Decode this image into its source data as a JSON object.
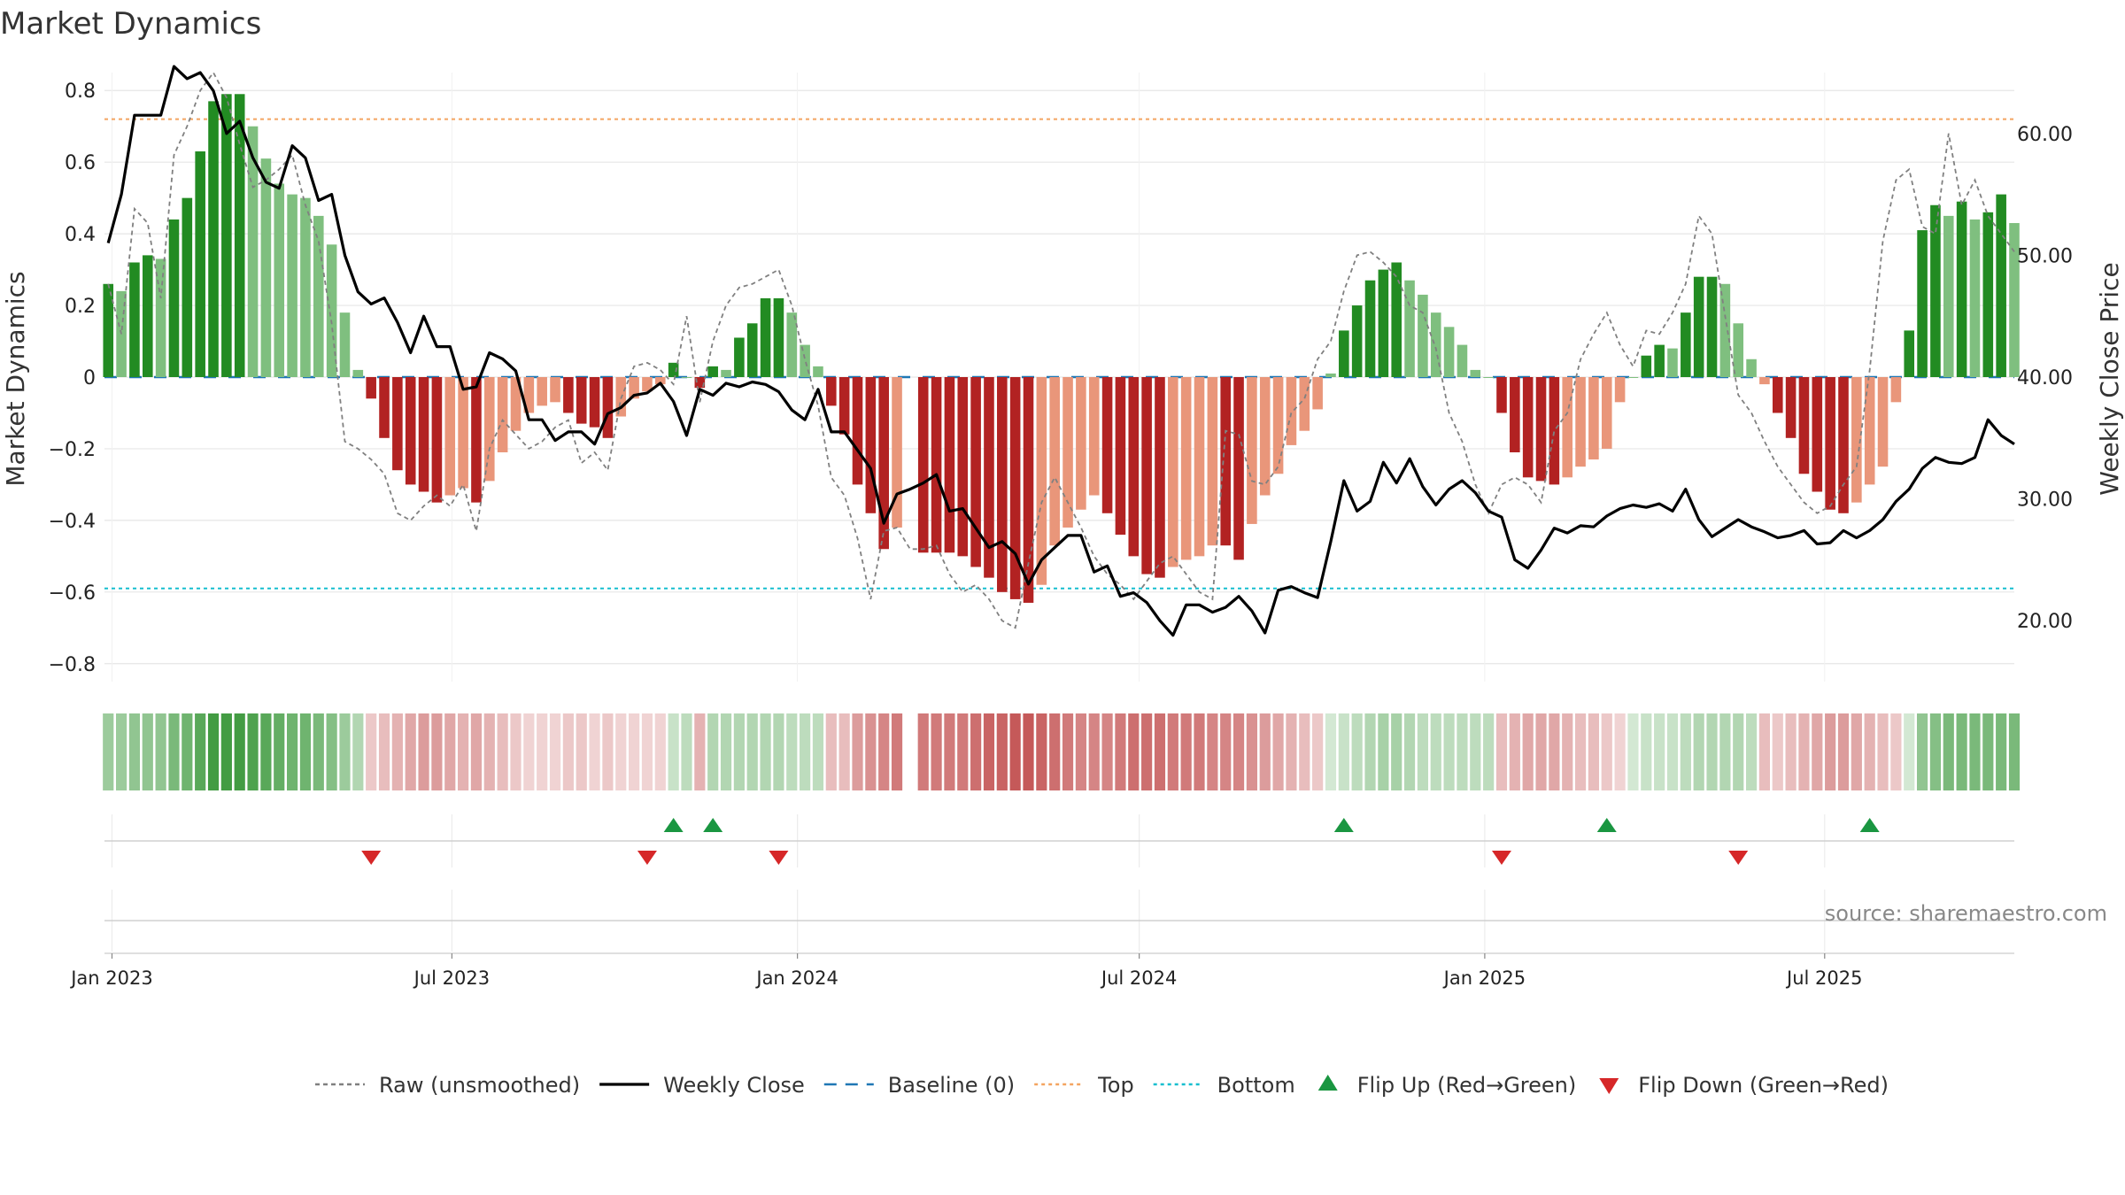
{
  "chart_data": {
    "type": "bar",
    "title": "Market Dynamics",
    "ylabel_left": "Market Dynamics",
    "ylabel_right": "Weekly Close Price",
    "source": "source: sharemaestro.com",
    "ylim_left": [
      -0.85,
      0.85
    ],
    "ylim_right": [
      15,
      65
    ],
    "y_ticks_left": [
      {
        "value": 0.8,
        "label": "0.8"
      },
      {
        "value": 0.6,
        "label": "0.6"
      },
      {
        "value": 0.4,
        "label": "0.4"
      },
      {
        "value": 0.2,
        "label": "0.2"
      },
      {
        "value": 0.0,
        "label": "0"
      },
      {
        "value": -0.2,
        "label": "−0.2"
      },
      {
        "value": -0.4,
        "label": "−0.4"
      },
      {
        "value": -0.6,
        "label": "−0.6"
      },
      {
        "value": -0.8,
        "label": "−0.8"
      }
    ],
    "y_ticks_right": [
      {
        "value": 60,
        "label": "60.00"
      },
      {
        "value": 50,
        "label": "50.00"
      },
      {
        "value": 40,
        "label": "40.00"
      },
      {
        "value": 30,
        "label": "30.00"
      },
      {
        "value": 20,
        "label": "20.00"
      }
    ],
    "x_range": [
      "2022-12-28",
      "2025-10-10"
    ],
    "x_ticks": [
      {
        "date": "2023-01-01",
        "label": "Jan 2023"
      },
      {
        "date": "2023-07-01",
        "label": "Jul 2023"
      },
      {
        "date": "2024-01-01",
        "label": "Jan 2024"
      },
      {
        "date": "2024-07-01",
        "label": "Jul 2024"
      },
      {
        "date": "2025-01-01",
        "label": "Jan 2025"
      },
      {
        "date": "2025-07-01",
        "label": "Jul 2025"
      }
    ],
    "start_date": "2022-12-30",
    "week_step_days": 7,
    "gap_weeks": [
      61
    ],
    "top_level": 0.72,
    "bottom_level": -0.59,
    "baseline": 0,
    "grid": true,
    "legend_position": "bottom",
    "dynamics": [
      0.26,
      0.24,
      0.32,
      0.34,
      0.33,
      0.44,
      0.5,
      0.63,
      0.77,
      0.79,
      0.79,
      0.7,
      0.61,
      0.54,
      0.51,
      0.5,
      0.45,
      0.37,
      0.18,
      0.02,
      -0.06,
      -0.17,
      -0.26,
      -0.3,
      -0.32,
      -0.35,
      -0.33,
      -0.31,
      -0.35,
      -0.29,
      -0.21,
      -0.15,
      -0.1,
      -0.08,
      -0.07,
      -0.1,
      -0.13,
      -0.14,
      -0.17,
      -0.11,
      -0.06,
      -0.04,
      -0.02,
      0.04,
      0.0,
      -0.03,
      0.03,
      0.02,
      0.11,
      0.15,
      0.22,
      0.22,
      0.18,
      0.09,
      0.03,
      -0.08,
      -0.16,
      -0.3,
      -0.38,
      -0.48,
      -0.42,
      null,
      -0.49,
      -0.49,
      -0.49,
      -0.5,
      -0.53,
      -0.56,
      -0.6,
      -0.62,
      -0.63,
      -0.58,
      -0.47,
      -0.42,
      -0.37,
      -0.33,
      -0.38,
      -0.44,
      -0.5,
      -0.55,
      -0.56,
      -0.53,
      -0.51,
      -0.5,
      -0.47,
      -0.47,
      -0.51,
      -0.41,
      -0.33,
      -0.27,
      -0.19,
      -0.15,
      -0.09,
      0.01,
      0.13,
      0.2,
      0.27,
      0.3,
      0.32,
      0.27,
      0.23,
      0.18,
      0.14,
      0.09,
      0.02,
      0.0,
      -0.1,
      -0.21,
      -0.28,
      -0.29,
      -0.3,
      -0.28,
      -0.25,
      -0.23,
      -0.2,
      -0.07,
      0.0,
      0.06,
      0.09,
      0.08,
      0.18,
      0.28,
      0.28,
      0.26,
      0.15,
      0.05,
      -0.02,
      -0.1,
      -0.17,
      -0.27,
      -0.32,
      -0.37,
      -0.38,
      -0.35,
      -0.3,
      -0.25,
      -0.07,
      0.13,
      0.41,
      0.48,
      0.45,
      0.49,
      0.44,
      0.46,
      0.51,
      0.43
    ],
    "raw": [
      0.26,
      0.12,
      0.47,
      0.43,
      0.22,
      0.62,
      0.7,
      0.8,
      0.85,
      0.78,
      0.65,
      0.53,
      0.55,
      0.58,
      0.62,
      0.48,
      0.38,
      0.15,
      -0.18,
      -0.2,
      -0.23,
      -0.27,
      -0.38,
      -0.4,
      -0.36,
      -0.33,
      -0.36,
      -0.3,
      -0.43,
      -0.2,
      -0.12,
      -0.16,
      -0.2,
      -0.18,
      -0.14,
      -0.12,
      -0.24,
      -0.21,
      -0.26,
      -0.06,
      0.03,
      0.04,
      0.02,
      -0.02,
      0.17,
      -0.07,
      0.1,
      0.2,
      0.25,
      0.26,
      0.28,
      0.3,
      0.2,
      0.05,
      -0.08,
      -0.28,
      -0.33,
      -0.45,
      -0.62,
      -0.43,
      -0.42,
      -0.48,
      -0.48,
      -0.47,
      -0.55,
      -0.6,
      -0.58,
      -0.62,
      -0.68,
      -0.7,
      -0.52,
      -0.35,
      -0.28,
      -0.35,
      -0.42,
      -0.5,
      -0.55,
      -0.58,
      -0.62,
      -0.57,
      -0.52,
      -0.5,
      -0.55,
      -0.6,
      -0.62,
      -0.15,
      -0.16,
      -0.29,
      -0.3,
      -0.25,
      -0.1,
      -0.06,
      0.05,
      0.1,
      0.24,
      0.34,
      0.35,
      0.32,
      0.28,
      0.2,
      0.18,
      0.08,
      -0.1,
      -0.18,
      -0.3,
      -0.38,
      -0.3,
      -0.28,
      -0.3,
      -0.35,
      -0.15,
      -0.1,
      0.05,
      0.12,
      0.18,
      0.09,
      0.03,
      0.13,
      0.12,
      0.18,
      0.26,
      0.45,
      0.4,
      0.17,
      -0.05,
      -0.1,
      -0.18,
      -0.25,
      -0.3,
      -0.35,
      -0.38,
      -0.36,
      -0.3,
      -0.25,
      0.02,
      0.38,
      0.55,
      0.58,
      0.42,
      0.4,
      0.68,
      0.48,
      0.55,
      0.45,
      0.4,
      0.35
    ],
    "close": [
      51,
      55,
      61.5,
      61.5,
      61.5,
      65.5,
      64.5,
      65,
      63.5,
      60,
      61,
      58,
      56,
      55.5,
      59,
      58,
      54.5,
      55,
      50,
      47,
      46,
      46.5,
      44.5,
      42,
      45,
      42.5,
      42.5,
      39,
      39.2,
      42,
      41.5,
      40.5,
      36.5,
      36.5,
      34.8,
      35.5,
      35.5,
      34.5,
      37,
      37.5,
      38.5,
      38.7,
      39.5,
      38,
      35.2,
      39,
      38.5,
      39.5,
      39.2,
      39.6,
      39.4,
      38.8,
      37.3,
      36.5,
      39,
      35.5,
      35.5,
      34,
      32.5,
      28,
      30.4,
      30.8,
      31.3,
      32,
      29,
      29.2,
      27.6,
      26,
      26.5,
      25.5,
      23,
      25,
      26,
      27,
      27,
      24,
      24.5,
      22,
      22.3,
      21.5,
      20,
      18.8,
      21.3,
      21.3,
      20.7,
      21.1,
      22,
      20.8,
      19,
      22.5,
      22.8,
      22.3,
      21.9,
      26.5,
      31.5,
      29,
      29.8,
      33,
      31.3,
      33.3,
      31,
      29.5,
      30.8,
      31.5,
      30.5,
      29,
      28.5,
      25,
      24.3,
      25.8,
      27.6,
      27.2,
      27.8,
      27.7,
      28.6,
      29.2,
      29.5,
      29.3,
      29.6,
      29,
      30.8,
      28.3,
      26.9,
      27.6,
      28.3,
      27.7,
      27.3,
      26.8,
      27,
      27.4,
      26.3,
      26.4,
      27.4,
      26.8,
      27.4,
      28.3,
      29.8,
      30.8,
      32.5,
      33.4,
      33,
      32.9,
      33.4,
      36.5,
      35.2,
      34.5
    ],
    "strip_level": [
      0.45,
      0.45,
      0.5,
      0.5,
      0.5,
      0.6,
      0.65,
      0.75,
      0.85,
      0.85,
      0.85,
      0.8,
      0.75,
      0.7,
      0.65,
      0.65,
      0.6,
      0.55,
      0.45,
      0.35,
      0.25,
      0.3,
      0.35,
      0.4,
      0.45,
      0.45,
      0.4,
      0.35,
      0.4,
      0.35,
      0.3,
      0.25,
      0.2,
      0.2,
      0.2,
      0.25,
      0.25,
      0.2,
      0.25,
      0.2,
      0.2,
      0.2,
      0.2,
      0.25,
      0.3,
      0.35,
      0.35,
      0.35,
      0.35,
      0.35,
      0.35,
      0.35,
      0.3,
      0.3,
      0.3,
      0.3,
      0.3,
      0.45,
      0.5,
      0.55,
      0.6,
      null,
      0.6,
      0.6,
      0.6,
      0.6,
      0.65,
      0.7,
      0.7,
      0.75,
      0.75,
      0.7,
      0.65,
      0.6,
      0.55,
      0.55,
      0.55,
      0.6,
      0.65,
      0.65,
      0.65,
      0.6,
      0.6,
      0.6,
      0.55,
      0.55,
      0.55,
      0.5,
      0.45,
      0.4,
      0.35,
      0.3,
      0.25,
      0.2,
      0.25,
      0.3,
      0.35,
      0.4,
      0.4,
      0.35,
      0.3,
      0.3,
      0.3,
      0.3,
      0.3,
      0.3,
      0.3,
      0.35,
      0.4,
      0.4,
      0.4,
      0.35,
      0.3,
      0.3,
      0.25,
      0.2,
      0.2,
      0.25,
      0.25,
      0.25,
      0.3,
      0.35,
      0.35,
      0.35,
      0.35,
      0.3,
      0.3,
      0.25,
      0.3,
      0.35,
      0.4,
      0.45,
      0.45,
      0.4,
      0.35,
      0.3,
      0.25,
      0.2,
      0.5,
      0.55,
      0.6,
      0.6,
      0.6,
      0.6,
      0.6,
      0.6,
      0.6,
      0.55
    ],
    "flips_up": [
      {
        "week": 43
      },
      {
        "week": 46
      },
      {
        "week": 94
      },
      {
        "week": 114
      },
      {
        "week": 134
      }
    ],
    "flips_down": [
      {
        "week": 20
      },
      {
        "week": 41
      },
      {
        "week": 51
      },
      {
        "week": 106
      },
      {
        "week": 124
      }
    ],
    "colors": {
      "strong_green": "#228b22",
      "light_green": "#7fbf7f",
      "strong_red": "#b22222",
      "light_red": "#e9967a",
      "raw_line": "#808080",
      "close_line": "#000000",
      "baseline": "#1f77b4",
      "top_line": "#f4a460",
      "bottom_line": "#17becf",
      "flip_up": "#1a9641",
      "flip_down": "#d62728",
      "grid": "#e6e6e6"
    },
    "legend": [
      {
        "label": "Raw (unsmoothed)",
        "kind": "dash",
        "color": "#808080"
      },
      {
        "label": "Weekly Close",
        "kind": "solid",
        "color": "#000000"
      },
      {
        "label": "Baseline (0)",
        "kind": "longdash",
        "color": "#1f77b4"
      },
      {
        "label": "Top",
        "kind": "dot",
        "color": "#f4a460"
      },
      {
        "label": "Bottom",
        "kind": "dot",
        "color": "#17becf"
      },
      {
        "label": "Flip Up (Red→Green)",
        "kind": "tri-up",
        "color": "#1a9641"
      },
      {
        "label": "Flip Down (Green→Red)",
        "kind": "tri-down",
        "color": "#d62728"
      }
    ]
  }
}
